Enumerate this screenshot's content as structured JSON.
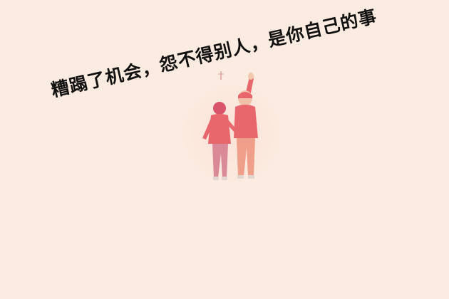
{
  "caption": {
    "text": "糟蹋了机会，怨不得别人，是你自己的事"
  },
  "colors": {
    "background": "#fcebe0",
    "text": "#111111",
    "jacket": "#e8676d",
    "pants_man": "#f0a08a",
    "legs_woman": "#d98a96"
  },
  "illustration": {
    "subject": "couple-holding-hands-icon"
  }
}
